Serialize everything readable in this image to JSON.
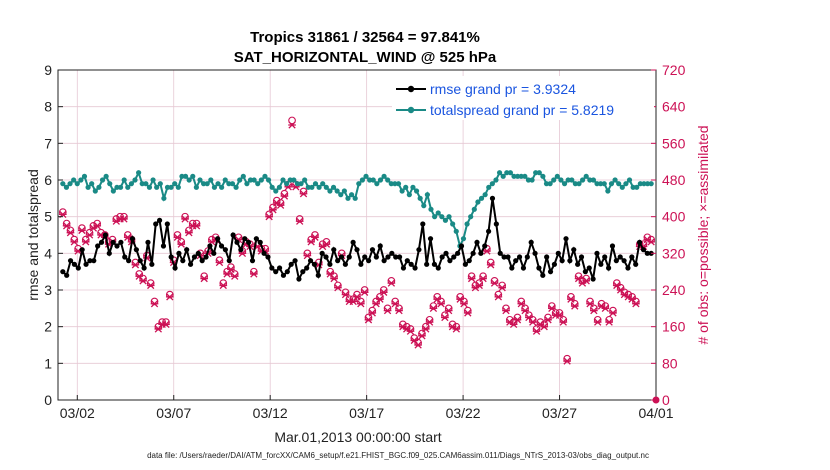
{
  "chart_data": {
    "type": "line",
    "title": "Tropics 31861 / 32564 = 97.841%",
    "subtitle": "SAT_HORIZONTAL_WIND @ 525 hPa",
    "xlabel": "Mar.01,2013 00:00:00 start",
    "ylabel": "rmse and totalspread",
    "ylabel_right": "# of obs: o=possible; ×=assimilated",
    "xlim": [
      0,
      31
    ],
    "ylim": [
      0,
      9
    ],
    "ylim_right": [
      0,
      720
    ],
    "x_ticks": [
      1,
      6,
      11,
      16,
      21,
      26,
      31
    ],
    "x_tick_labels": [
      "03/02",
      "03/07",
      "03/12",
      "03/17",
      "03/22",
      "03/27",
      "04/01"
    ],
    "y_ticks": [
      0,
      1,
      2,
      3,
      4,
      5,
      6,
      7,
      8,
      9
    ],
    "y_ticks_right": [
      0,
      80,
      160,
      240,
      320,
      400,
      480,
      560,
      640,
      720
    ],
    "legend_position": "top-right",
    "series": [
      {
        "name": "rmse grand pr = 3.9324",
        "color": "#000000",
        "values": [
          3.5,
          3.4,
          3.8,
          3.7,
          3.6,
          4.1,
          3.7,
          3.8,
          3.8,
          4.2,
          4.3,
          4.5,
          4.0,
          4.3,
          4.2,
          4.3,
          3.9,
          3.8,
          4.4,
          4.1,
          3.8,
          3.6,
          4.3,
          3.7,
          4.8,
          4.9,
          4.2,
          4.8,
          3.9,
          3.6,
          4.0,
          3.8,
          4.1,
          3.7,
          3.9,
          4.0,
          3.8,
          3.9,
          4.2,
          4.0,
          4.4,
          4.2,
          4.1,
          3.8,
          4.5,
          4.3,
          4.1,
          4.4,
          4.3,
          3.8,
          4.4,
          4.3,
          4.0,
          3.9,
          3.6,
          3.5,
          3.6,
          3.4,
          3.5,
          3.7,
          3.8,
          3.3,
          3.5,
          3.6,
          3.8,
          3.7,
          3.4,
          4.0,
          3.9,
          3.7,
          4.1,
          3.8,
          3.9,
          3.7,
          3.9,
          4.3,
          4.1,
          3.7,
          3.9,
          3.8,
          4.1,
          3.9,
          4.2,
          3.8,
          3.9,
          4.0,
          3.9,
          3.9,
          3.6,
          3.8,
          3.7,
          3.6,
          4.1,
          4.8,
          3.7,
          4.4,
          3.7,
          3.6,
          3.9,
          4.0,
          3.8,
          3.9,
          4.0,
          4.2,
          3.7,
          3.8,
          4.0,
          4.3,
          4.0,
          4.2,
          4.6,
          5.5,
          4.8,
          4.0,
          3.9,
          3.9,
          3.6,
          3.8,
          3.9,
          3.6,
          3.9,
          4.3,
          4.0,
          3.6,
          3.4,
          3.9,
          3.5,
          3.7,
          4.0,
          3.8,
          4.4,
          3.8,
          4.1,
          3.7,
          3.9,
          3.5,
          3.6,
          3.3,
          4.0,
          3.7,
          3.9,
          3.6,
          4.2,
          3.8,
          3.9,
          3.8,
          3.6,
          3.9,
          3.7,
          4.3,
          4.1,
          4.0,
          4.0
        ]
      },
      {
        "name": "totalspread grand pr = 5.8219",
        "color": "#1a8a86",
        "values": [
          5.9,
          5.8,
          5.9,
          6.0,
          5.9,
          6.0,
          6.1,
          5.8,
          5.9,
          5.7,
          5.8,
          6.0,
          6.1,
          5.9,
          5.7,
          5.8,
          5.8,
          6.0,
          5.8,
          5.9,
          6.0,
          6.2,
          5.9,
          5.9,
          5.8,
          6.0,
          5.8,
          5.9,
          5.5,
          5.8,
          5.8,
          5.9,
          5.8,
          6.1,
          6.1,
          6.0,
          6.1,
          5.8,
          6.0,
          5.9,
          5.9,
          6.0,
          5.8,
          5.9,
          5.8,
          6.0,
          5.9,
          5.9,
          5.8,
          6.0,
          6.1,
          5.9,
          6.0,
          6.0,
          5.9,
          6.0,
          6.1,
          6.0,
          5.8,
          5.7,
          5.8,
          6.0,
          5.9,
          6.0,
          6.0,
          5.9,
          5.9,
          6.0,
          5.8,
          5.8,
          5.9,
          5.8,
          5.9,
          5.8,
          5.7,
          5.8,
          5.7,
          5.6,
          5.7,
          5.5,
          5.6,
          5.5,
          5.9,
          6.0,
          6.1,
          6.0,
          6.0,
          5.9,
          6.0,
          6.1,
          6.0,
          5.9,
          5.9,
          5.9,
          5.7,
          5.8,
          5.6,
          5.8,
          5.7,
          5.5,
          5.3,
          5.6,
          5.2,
          5.0,
          5.1,
          5.0,
          4.9,
          5.0,
          4.8,
          4.6,
          4.2,
          4.4,
          4.8,
          5.0,
          5.2,
          5.4,
          5.5,
          5.6,
          5.8,
          5.9,
          6.0,
          6.2,
          6.1,
          6.2,
          6.2,
          6.1,
          6.1,
          6.1,
          6.1,
          6.0,
          6.0,
          6.2,
          6.2,
          6.1,
          5.9,
          5.9,
          6.0,
          6.1,
          6.0,
          5.9,
          6.0,
          6.0,
          5.9,
          5.9,
          6.0,
          6.1,
          6.0,
          6.0,
          5.9,
          5.9,
          5.9,
          5.7,
          5.9,
          6.0,
          5.9,
          5.8,
          5.9,
          6.0,
          5.8,
          5.8,
          5.9,
          5.9,
          5.9,
          5.9
        ]
      },
      {
        "name": "possible obs",
        "color": "#cc1155",
        "marker": "o",
        "values": [
          410,
          385,
          370,
          350,
          330,
          375,
          350,
          365,
          380,
          385,
          365,
          360,
          345,
          350,
          395,
          400,
          400,
          360,
          350,
          300,
          275,
          265,
          315,
          255,
          215,
          160,
          170,
          170,
          230,
          305,
          360,
          345,
          400,
          370,
          385,
          385,
          320,
          270,
          325,
          350,
          355,
          305,
          255,
          280,
          290,
          275,
          355,
          325,
          345,
          340,
          280,
          340,
          330,
          330,
          405,
          420,
          435,
          430,
          450,
          470,
          610,
          470,
          395,
          455,
          320,
          350,
          360,
          300,
          340,
          345,
          280,
          270,
          250,
          320,
          235,
          220,
          220,
          230,
          215,
          240,
          180,
          195,
          215,
          225,
          240,
          200,
          260,
          215,
          200,
          165,
          160,
          155,
          135,
          125,
          145,
          160,
          175,
          205,
          225,
          215,
          185,
          200,
          165,
          160,
          225,
          215,
          195,
          270,
          250,
          255,
          270,
          330,
          300,
          260,
          230,
          250,
          200,
          175,
          170,
          180,
          215,
          200,
          185,
          175,
          155,
          170,
          165,
          180,
          205,
          190,
          190,
          175,
          90,
          225,
          210,
          270,
          260,
          265,
          215,
          200,
          175,
          210,
          205,
          175,
          195,
          255,
          245,
          235,
          230,
          225,
          215,
          340,
          340,
          355,
          350
        ]
      },
      {
        "name": "assimilated obs",
        "color": "#cc1155",
        "marker": "x",
        "values": [
          405,
          380,
          365,
          345,
          325,
          370,
          345,
          360,
          375,
          380,
          360,
          355,
          340,
          345,
          390,
          395,
          395,
          355,
          345,
          295,
          270,
          260,
          310,
          250,
          210,
          155,
          165,
          165,
          225,
          300,
          355,
          340,
          395,
          365,
          380,
          380,
          315,
          265,
          320,
          345,
          350,
          300,
          250,
          275,
          285,
          270,
          350,
          320,
          340,
          335,
          275,
          335,
          325,
          325,
          400,
          415,
          430,
          425,
          445,
          465,
          600,
          465,
          390,
          450,
          315,
          345,
          355,
          295,
          335,
          340,
          275,
          265,
          245,
          315,
          230,
          215,
          215,
          225,
          210,
          235,
          175,
          190,
          210,
          220,
          235,
          195,
          255,
          210,
          195,
          160,
          155,
          150,
          130,
          120,
          140,
          155,
          170,
          200,
          220,
          210,
          180,
          195,
          160,
          155,
          220,
          210,
          190,
          265,
          245,
          250,
          265,
          325,
          295,
          255,
          225,
          245,
          195,
          170,
          165,
          175,
          210,
          195,
          180,
          170,
          150,
          165,
          160,
          175,
          200,
          185,
          185,
          170,
          85,
          220,
          205,
          265,
          255,
          260,
          210,
          195,
          170,
          205,
          200,
          170,
          190,
          250,
          240,
          230,
          225,
          220,
          210,
          335,
          335,
          350,
          345
        ]
      }
    ]
  },
  "footer": {
    "data_file": "data file: /Users/raeder/DAI/ATM_forcXX/CAM6_setup/f.e21.FHIST_BGC.f09_025.CAM6assim.011/Diags_NTrS_2013-03/obs_diag_output.nc"
  }
}
